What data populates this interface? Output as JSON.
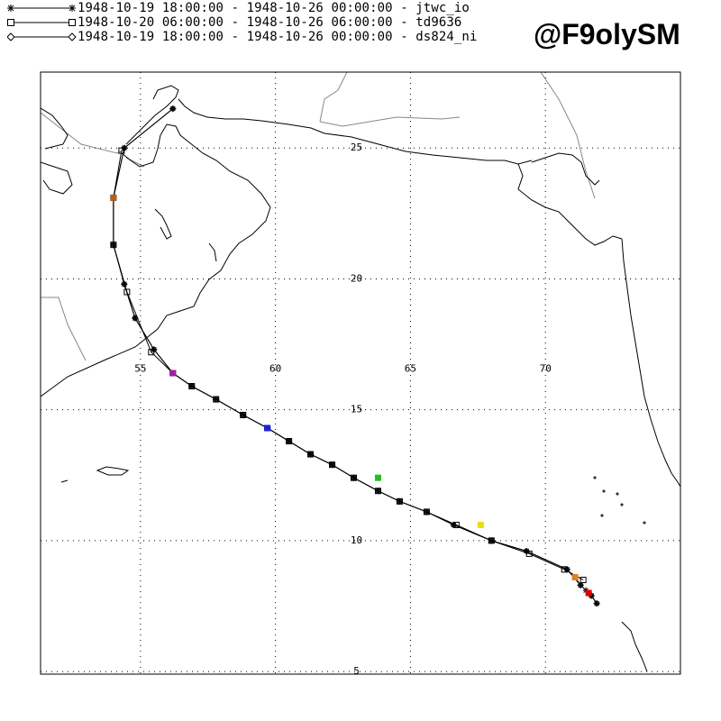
{
  "legend": [
    {
      "marker": "asterisk",
      "text": "1948-10-19 18:00:00 - 1948-10-26 00:00:00 - jtwc_io"
    },
    {
      "marker": "square",
      "text": "1948-10-20 06:00:00 - 1948-10-26 06:00:00 - td9636"
    },
    {
      "marker": "diamond",
      "text": "1948-10-19 18:00:00 - 1948-10-26 00:00:00 - ds824_ni"
    }
  ],
  "watermark": "@F9olySM",
  "map": {
    "lon_range": [
      51.3,
      75.0
    ],
    "lat_range": [
      4.9,
      27.9
    ],
    "lon_ticks": [
      55,
      60,
      65,
      70
    ],
    "lat_ticks": [
      5,
      10,
      15,
      20,
      25
    ],
    "grid": "dotted",
    "colors": {
      "coast": "#000000",
      "border": "#888888",
      "track": "#000000"
    }
  },
  "tracks": {
    "jtwc_io": [
      [
        71.9,
        7.6
      ],
      [
        71.7,
        7.9
      ],
      [
        71.5,
        8.1
      ],
      [
        71.3,
        8.3
      ],
      [
        71.1,
        8.6
      ],
      [
        70.8,
        8.9
      ],
      [
        69.3,
        9.6
      ],
      [
        68.0,
        10.0
      ],
      [
        66.6,
        10.6
      ],
      [
        65.6,
        11.1
      ],
      [
        64.6,
        11.5
      ],
      [
        63.8,
        11.9
      ],
      [
        62.9,
        12.4
      ],
      [
        62.1,
        12.9
      ],
      [
        61.3,
        13.3
      ],
      [
        60.5,
        13.8
      ],
      [
        59.7,
        14.3
      ],
      [
        58.8,
        14.8
      ],
      [
        57.8,
        15.4
      ],
      [
        56.9,
        15.9
      ],
      [
        56.2,
        16.4
      ],
      [
        55.5,
        17.3
      ],
      [
        54.8,
        18.5
      ],
      [
        54.4,
        19.8
      ],
      [
        54.0,
        21.3
      ],
      [
        54.0,
        23.1
      ],
      [
        54.4,
        25.0
      ],
      [
        56.2,
        26.5
      ]
    ],
    "td9636": [
      [
        71.4,
        8.5
      ],
      [
        70.7,
        8.9
      ],
      [
        69.4,
        9.5
      ],
      [
        68.0,
        10.0
      ],
      [
        66.7,
        10.6
      ],
      [
        65.6,
        11.1
      ],
      [
        64.6,
        11.5
      ],
      [
        63.8,
        11.9
      ],
      [
        62.9,
        12.4
      ],
      [
        62.1,
        12.9
      ],
      [
        61.3,
        13.3
      ],
      [
        60.5,
        13.8
      ],
      [
        59.7,
        14.3
      ],
      [
        58.8,
        14.8
      ],
      [
        57.8,
        15.4
      ],
      [
        56.9,
        15.9
      ],
      [
        56.2,
        16.4
      ],
      [
        55.4,
        17.2
      ],
      [
        54.5,
        19.5
      ],
      [
        54.0,
        21.3
      ],
      [
        54.0,
        23.1
      ],
      [
        54.3,
        24.9
      ]
    ],
    "ds824_ni": [
      [
        71.9,
        7.6
      ],
      [
        71.7,
        7.9
      ],
      [
        71.3,
        8.3
      ],
      [
        70.8,
        8.9
      ],
      [
        69.3,
        9.6
      ],
      [
        68.0,
        10.0
      ],
      [
        66.6,
        10.6
      ],
      [
        65.6,
        11.1
      ],
      [
        64.6,
        11.5
      ],
      [
        63.8,
        11.9
      ],
      [
        62.9,
        12.4
      ],
      [
        62.1,
        12.9
      ],
      [
        61.3,
        13.3
      ],
      [
        60.5,
        13.8
      ],
      [
        59.7,
        14.3
      ],
      [
        58.8,
        14.8
      ],
      [
        57.8,
        15.4
      ],
      [
        56.9,
        15.9
      ],
      [
        56.2,
        16.4
      ],
      [
        55.5,
        17.3
      ],
      [
        54.8,
        18.5
      ],
      [
        54.4,
        19.8
      ],
      [
        54.0,
        21.3
      ],
      [
        54.0,
        23.1
      ],
      [
        54.4,
        25.0
      ],
      [
        56.2,
        26.5
      ]
    ]
  },
  "daily_markers": [
    {
      "lon": 71.6,
      "lat": 8.0,
      "color": "#e00000"
    },
    {
      "lon": 71.1,
      "lat": 8.6,
      "color": "#e08020"
    },
    {
      "lon": 67.6,
      "lat": 10.6,
      "color": "#e8e000"
    },
    {
      "lon": 63.8,
      "lat": 12.4,
      "color": "#20c020"
    },
    {
      "lon": 59.7,
      "lat": 14.3,
      "color": "#2020e0"
    },
    {
      "lon": 56.2,
      "lat": 16.4,
      "color": "#a020a0"
    },
    {
      "lon": 54.0,
      "lat": 23.1,
      "color": "#b06020"
    }
  ]
}
